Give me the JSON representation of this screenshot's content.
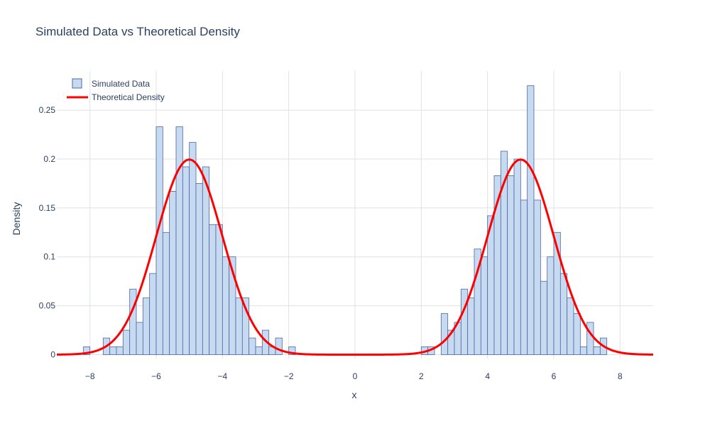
{
  "chart_data": {
    "type": "bar",
    "title": "Simulated Data vs Theoretical Density",
    "xlabel": "x",
    "ylabel": "Density",
    "xlim": [
      -9,
      9
    ],
    "ylim": [
      -0.004,
      0.29
    ],
    "x_ticks": [
      -8,
      -6,
      -4,
      -2,
      0,
      2,
      4,
      6,
      8
    ],
    "x_tick_labels": [
      "−8",
      "−6",
      "−4",
      "−2",
      "0",
      "2",
      "4",
      "6",
      "8"
    ],
    "y_ticks": [
      0,
      0.05,
      0.1,
      0.15,
      0.2,
      0.25
    ],
    "y_tick_labels": [
      "0",
      "0.05",
      "0.1",
      "0.15",
      "0.2",
      "0.25"
    ],
    "grid": true,
    "legend_position": "top-left",
    "series": [
      {
        "name": "Simulated Data",
        "kind": "histogram",
        "fill_color": "#c6dbef",
        "line_color": "#4f65a8",
        "bin_width": 0.2,
        "bins": [
          [
            -8.2,
            0.008
          ],
          [
            -7.6,
            0.017
          ],
          [
            -7.4,
            0.008
          ],
          [
            -7.2,
            0.008
          ],
          [
            -7.0,
            0.025
          ],
          [
            -6.8,
            0.067
          ],
          [
            -6.6,
            0.033
          ],
          [
            -6.4,
            0.058
          ],
          [
            -6.2,
            0.083
          ],
          [
            -6.0,
            0.233
          ],
          [
            -5.8,
            0.125
          ],
          [
            -5.6,
            0.167
          ],
          [
            -5.4,
            0.233
          ],
          [
            -5.2,
            0.192
          ],
          [
            -5.0,
            0.217
          ],
          [
            -4.8,
            0.175
          ],
          [
            -4.6,
            0.192
          ],
          [
            -4.4,
            0.133
          ],
          [
            -4.2,
            0.133
          ],
          [
            -4.0,
            0.1
          ],
          [
            -3.8,
            0.1
          ],
          [
            -3.6,
            0.058
          ],
          [
            -3.4,
            0.058
          ],
          [
            -3.2,
            0.017
          ],
          [
            -3.0,
            0.008
          ],
          [
            -2.8,
            0.025
          ],
          [
            -2.6,
            0.008
          ],
          [
            -2.4,
            0.017
          ],
          [
            -2.0,
            0.008
          ],
          [
            2.0,
            0.008
          ],
          [
            2.2,
            0.008
          ],
          [
            2.6,
            0.042
          ],
          [
            2.8,
            0.025
          ],
          [
            3.0,
            0.033
          ],
          [
            3.2,
            0.067
          ],
          [
            3.4,
            0.058
          ],
          [
            3.6,
            0.108
          ],
          [
            3.8,
            0.1
          ],
          [
            4.0,
            0.142
          ],
          [
            4.2,
            0.183
          ],
          [
            4.4,
            0.208
          ],
          [
            4.6,
            0.183
          ],
          [
            4.8,
            0.2
          ],
          [
            5.0,
            0.158
          ],
          [
            5.2,
            0.275
          ],
          [
            5.4,
            0.158
          ],
          [
            5.6,
            0.075
          ],
          [
            5.8,
            0.1
          ],
          [
            6.0,
            0.125
          ],
          [
            6.2,
            0.083
          ],
          [
            6.4,
            0.058
          ],
          [
            6.6,
            0.042
          ],
          [
            6.8,
            0.008
          ],
          [
            7.0,
            0.033
          ],
          [
            7.2,
            0.008
          ],
          [
            7.4,
            0.017
          ]
        ]
      },
      {
        "name": "Theoretical Density",
        "kind": "line",
        "color": "#ff0000",
        "function": "0.5*N(-5, 1) + 0.5*N(5, 1)",
        "x_range": [
          -9,
          9
        ]
      }
    ]
  }
}
